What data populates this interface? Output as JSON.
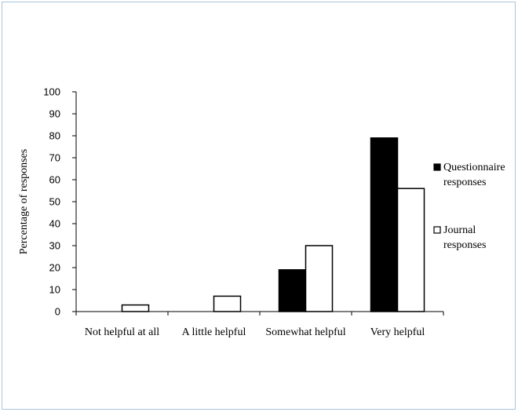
{
  "chart_data": {
    "type": "bar",
    "title": "",
    "xlabel": "",
    "ylabel": "Percentage of responses",
    "ylim": [
      0,
      100
    ],
    "yticks": [
      0,
      10,
      20,
      30,
      40,
      50,
      60,
      70,
      80,
      90,
      100
    ],
    "categories": [
      "Not helpful at all",
      "A little helpful",
      "Somewhat helpful",
      "Very helpful"
    ],
    "series": [
      {
        "name": "Questionnaire responses",
        "legend_lines": [
          "Questionnaire",
          "responses"
        ],
        "values": [
          0,
          0,
          19,
          79
        ],
        "color": "#000000"
      },
      {
        "name": "Journal responses",
        "legend_lines": [
          "Journal",
          "responses"
        ],
        "values": [
          3,
          7,
          30,
          56
        ],
        "color": "#ffffff"
      }
    ],
    "grid": false,
    "legend_position": "right"
  }
}
